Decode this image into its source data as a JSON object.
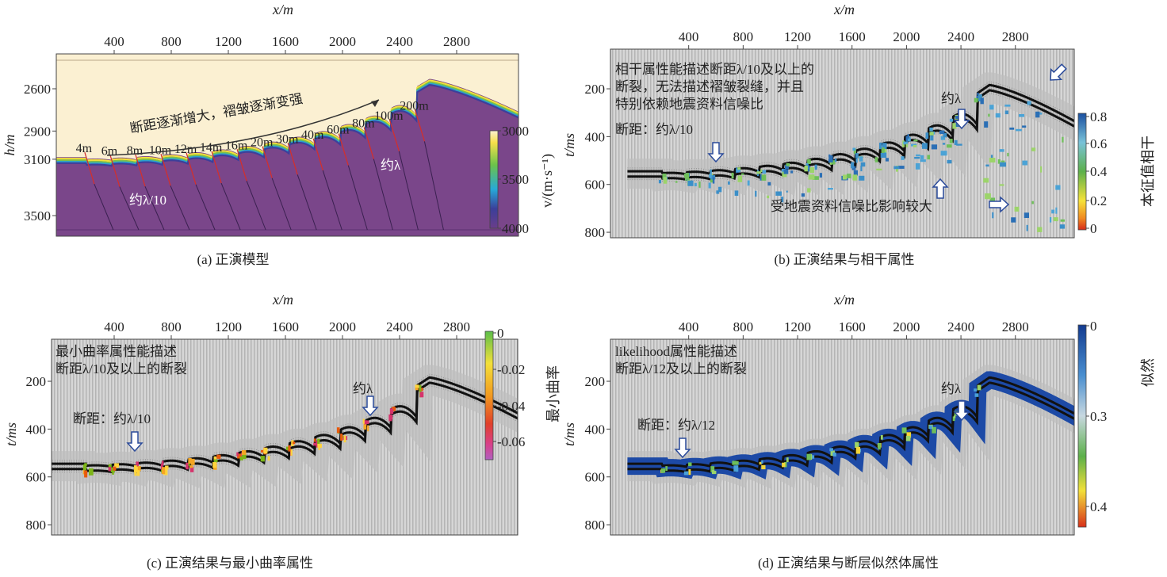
{
  "chart_data": [
    {
      "type": "heatmap",
      "title": "(a) 正演模型",
      "xlabel": "x/m",
      "ylabel": "h/m",
      "xticks": [
        400,
        800,
        1200,
        1600,
        2000,
        2400,
        2800
      ],
      "yticks": [
        2600,
        2900,
        3100,
        3500
      ],
      "xlim": [
        0,
        3230
      ],
      "ylim": [
        2450,
        3640
      ],
      "colorbar": {
        "label": "v/(m·s⁻¹)",
        "ticks": [
          "3000",
          "3500",
          "4000"
        ],
        "range": [
          3000,
          4000
        ]
      },
      "fault_throws": [
        "4m",
        "6m",
        "8m",
        "10m",
        "12m",
        "14m",
        "16m",
        "20m",
        "30m",
        "40m",
        "60m",
        "80m",
        "100m",
        "200m"
      ],
      "faults_x_m": [
        205,
        383,
        561,
        739,
        917,
        1095,
        1273,
        1451,
        1629,
        1807,
        1985,
        2163,
        2341,
        2519
      ],
      "block_top_depth_m": [
        3085,
        3095,
        3088,
        3078,
        3065,
        3050,
        3030,
        3005,
        2975,
        2940,
        2900,
        2850,
        2790,
        2715,
        2530
      ],
      "annotations": {
        "trend": "断距逐渐增大，褶皱逐渐变强",
        "small": "约λ/10",
        "large": "约λ"
      }
    },
    {
      "type": "heatmap",
      "title": "(b) 正演结果与相干属性",
      "xlabel": "x/m",
      "ylabel": "t/ms",
      "xticks": [
        400,
        800,
        1200,
        1600,
        2000,
        2400,
        2800
      ],
      "yticks": [
        200,
        400,
        600,
        800
      ],
      "xlim": [
        0,
        3230
      ],
      "ylim": [
        0,
        820
      ],
      "colorbar": {
        "label": "本征值相干",
        "ticks": [
          "0.8",
          "0.6",
          "0.4",
          "0.2",
          "0"
        ],
        "range": [
          0,
          0.8
        ]
      },
      "annotations": {
        "desc": [
          "相干属性能描述断距λ/10及以上的",
          "断裂，无法描述褶皱裂缝，并且",
          "特别依赖地震资料信噪比"
        ],
        "small": "断距：约λ/10",
        "large": "约λ",
        "noise": "受地震资料信噪比影响较大"
      }
    },
    {
      "type": "heatmap",
      "title": "(c) 正演结果与最小曲率属性",
      "xlabel": "x/m",
      "ylabel": "t/ms",
      "xticks": [
        400,
        800,
        1200,
        1600,
        2000,
        2400,
        2800
      ],
      "yticks": [
        200,
        400,
        600,
        800
      ],
      "xlim": [
        0,
        3230
      ],
      "ylim": [
        0,
        820
      ],
      "colorbar": {
        "label": "最小曲率",
        "ticks": [
          "0",
          "-0.02",
          "-0.04",
          "-0.06"
        ],
        "range": [
          -0.07,
          0
        ]
      },
      "annotations": {
        "desc": [
          "最小曲率属性能描述",
          "断距λ/10及以上的断裂"
        ],
        "small": "断距：约λ/10",
        "large": "约λ"
      }
    },
    {
      "type": "heatmap",
      "title": "(d) 正演结果与断层似然体属性",
      "xlabel": "x/m",
      "ylabel": "t/ms",
      "xticks": [
        400,
        800,
        1200,
        1600,
        2000,
        2400,
        2800
      ],
      "yticks": [
        200,
        400,
        600,
        800
      ],
      "xlim": [
        0,
        3230
      ],
      "ylim": [
        0,
        820
      ],
      "colorbar": {
        "label": "似然",
        "ticks": [
          "0",
          "0.3",
          "0.4"
        ],
        "range": [
          0,
          0.45
        ]
      },
      "annotations": {
        "desc": [
          "likelihood属性能描述",
          "断距λ/12及以上的断裂"
        ],
        "small": "断距：约λ/12",
        "large": "约λ"
      }
    }
  ],
  "colors": {
    "background_a": "#fbf0d2",
    "rock_a": "#7a468a",
    "arrow": "#2a4a9a",
    "fault": "#d03030"
  }
}
